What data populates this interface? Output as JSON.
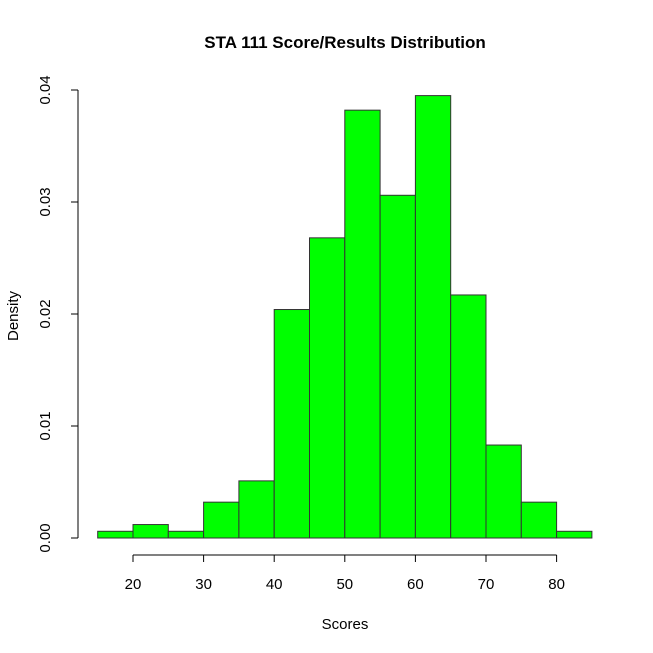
{
  "chart_data": {
    "type": "bar",
    "title": "STA 111 Score/Results Distribution",
    "xlabel": "Scores",
    "ylabel": "Density",
    "bins": [
      {
        "from": 15,
        "to": 20,
        "density": 0.0006
      },
      {
        "from": 20,
        "to": 25,
        "density": 0.0012
      },
      {
        "from": 25,
        "to": 30,
        "density": 0.0006
      },
      {
        "from": 30,
        "to": 35,
        "density": 0.0032
      },
      {
        "from": 35,
        "to": 40,
        "density": 0.0051
      },
      {
        "from": 40,
        "to": 45,
        "density": 0.0204
      },
      {
        "from": 45,
        "to": 50,
        "density": 0.0268
      },
      {
        "from": 50,
        "to": 55,
        "density": 0.0382
      },
      {
        "from": 55,
        "to": 60,
        "density": 0.0306
      },
      {
        "from": 60,
        "to": 65,
        "density": 0.0395
      },
      {
        "from": 65,
        "to": 70,
        "density": 0.0217
      },
      {
        "from": 70,
        "to": 75,
        "density": 0.0083
      },
      {
        "from": 75,
        "to": 80,
        "density": 0.0032
      },
      {
        "from": 80,
        "to": 85,
        "density": 0.0006
      }
    ],
    "xlim": [
      15,
      85
    ],
    "ylim": [
      0,
      0.04
    ],
    "x_ticks": [
      20,
      30,
      40,
      50,
      60,
      70,
      80
    ],
    "y_ticks": [
      "0.00",
      "0.01",
      "0.02",
      "0.03",
      "0.04"
    ],
    "bar_color": "#00FF00",
    "border_color": "#333333",
    "grid": false,
    "legend": "none"
  }
}
